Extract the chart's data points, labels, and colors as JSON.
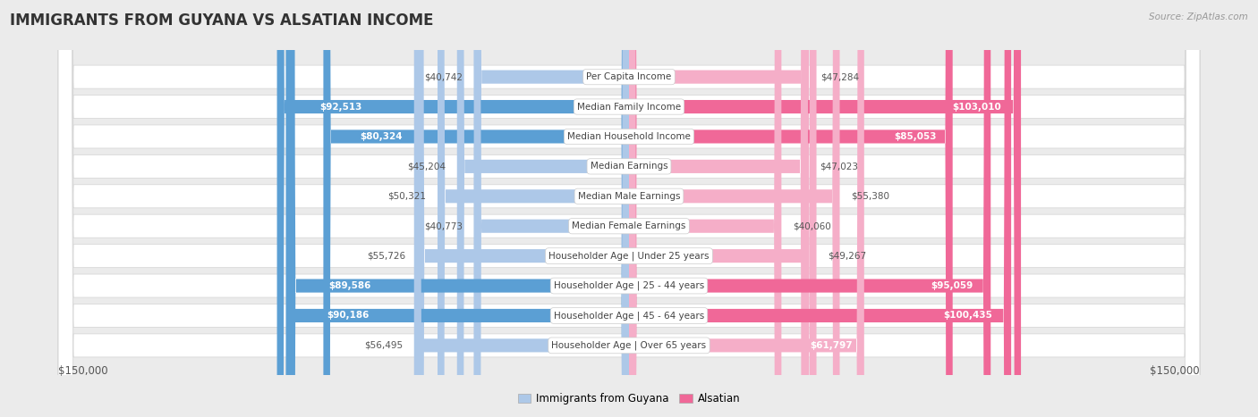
{
  "title": "IMMIGRANTS FROM GUYANA VS ALSATIAN INCOME",
  "source": "Source: ZipAtlas.com",
  "categories": [
    "Per Capita Income",
    "Median Family Income",
    "Median Household Income",
    "Median Earnings",
    "Median Male Earnings",
    "Median Female Earnings",
    "Householder Age | Under 25 years",
    "Householder Age | 25 - 44 years",
    "Householder Age | 45 - 64 years",
    "Householder Age | Over 65 years"
  ],
  "guyana_values": [
    40742,
    92513,
    80324,
    45204,
    50321,
    40773,
    55726,
    89586,
    90186,
    56495
  ],
  "alsatian_values": [
    47284,
    103010,
    85053,
    47023,
    55380,
    40060,
    49267,
    95059,
    100435,
    61797
  ],
  "guyana_labels": [
    "$40,742",
    "$92,513",
    "$80,324",
    "$45,204",
    "$50,321",
    "$40,773",
    "$55,726",
    "$89,586",
    "$90,186",
    "$56,495"
  ],
  "alsatian_labels": [
    "$47,284",
    "$103,010",
    "$85,053",
    "$47,023",
    "$55,380",
    "$40,060",
    "$49,267",
    "$95,059",
    "$100,435",
    "$61,797"
  ],
  "max_val": 150000,
  "x_label_left": "$150,000",
  "x_label_right": "$150,000",
  "guyana_color_light": "#adc8e8",
  "guyana_color_dark": "#5b9fd4",
  "alsatian_color_light": "#f5aec8",
  "alsatian_color_dark": "#f06898",
  "background_color": "#ebebeb",
  "row_bg_color": "#ffffff",
  "legend_guyana": "Immigrants from Guyana",
  "legend_alsatian": "Alsatian",
  "title_fontsize": 12,
  "label_fontsize": 7.5,
  "category_fontsize": 7.5,
  "inside_threshold": 60000
}
